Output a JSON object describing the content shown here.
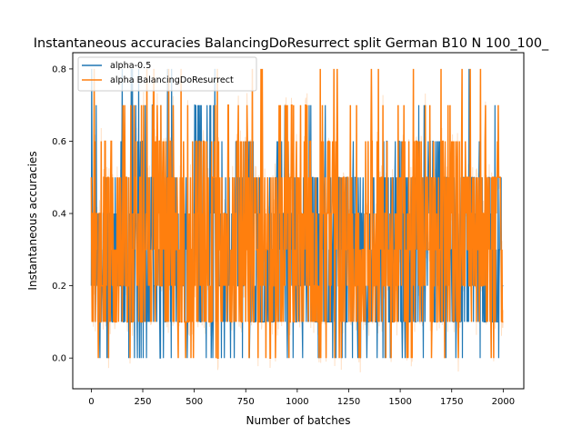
{
  "chart_data": {
    "type": "line",
    "title": "Instantaneous accuracies BalancingDoResurrect split German B10 N 100_100_",
    "xlabel": "Number of batches",
    "ylabel": "Instantaneous accuracies",
    "xlim": [
      -90,
      2100
    ],
    "ylim": [
      -0.085,
      0.845
    ],
    "xticks": [
      0,
      250,
      500,
      750,
      1000,
      1250,
      1500,
      1750,
      2000
    ],
    "xtick_labels": [
      "0",
      "250",
      "500",
      "750",
      "1000",
      "1250",
      "1500",
      "1750",
      "2000"
    ],
    "yticks": [
      0.0,
      0.2,
      0.4,
      0.6,
      0.8
    ],
    "ytick_labels": [
      "0.0",
      "0.2",
      "0.4",
      "0.6",
      "0.8"
    ],
    "grid": false,
    "legend_position": "upper-left",
    "series": [
      {
        "name": "alpha-0.5",
        "color": "#1f77b4",
        "points": [
          [
            0,
            0.3
          ],
          [
            40,
            0.1
          ],
          [
            100,
            0.2
          ],
          [
            150,
            0.1
          ],
          [
            200,
            0.6
          ],
          [
            250,
            0.7
          ],
          [
            300,
            0.3
          ],
          [
            400,
            0.2
          ],
          [
            500,
            0.7
          ],
          [
            600,
            0.2
          ],
          [
            700,
            0.6
          ],
          [
            800,
            0.1
          ],
          [
            900,
            0.6
          ],
          [
            1000,
            0.3
          ],
          [
            1100,
            0.1
          ],
          [
            1200,
            0.5
          ],
          [
            1300,
            0.2
          ],
          [
            1400,
            0.6
          ],
          [
            1500,
            0.1
          ],
          [
            1600,
            0.6
          ],
          [
            1700,
            0.1
          ],
          [
            1800,
            0.5
          ],
          [
            1900,
            0.1
          ],
          [
            2000,
            0.3
          ]
        ]
      },
      {
        "name": "alpha BalancingDoResurrect",
        "color": "#ff7f0e",
        "points": [
          [
            0,
            0.4
          ],
          [
            50,
            0.6
          ],
          [
            100,
            0.3
          ],
          [
            150,
            0.7
          ],
          [
            200,
            0.3
          ],
          [
            300,
            0.6
          ],
          [
            400,
            0.1
          ],
          [
            500,
            0.6
          ],
          [
            600,
            0.2
          ],
          [
            700,
            0.6
          ],
          [
            800,
            0.3
          ],
          [
            900,
            0.7
          ],
          [
            1000,
            0.2
          ],
          [
            1100,
            0.6
          ],
          [
            1200,
            0.3
          ],
          [
            1300,
            0.6
          ],
          [
            1400,
            0.2
          ],
          [
            1500,
            0.6
          ],
          [
            1600,
            0.3
          ],
          [
            1700,
            0.6
          ],
          [
            1800,
            0.2
          ],
          [
            1900,
            0.5
          ],
          [
            2000,
            0.4
          ]
        ]
      }
    ]
  }
}
